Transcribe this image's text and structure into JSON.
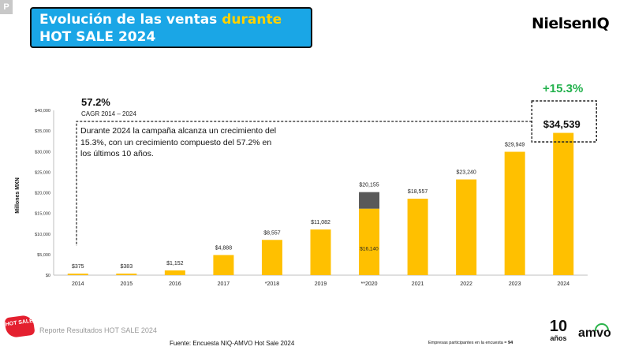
{
  "corner_tag": "P",
  "title": {
    "part1": "Evolución de las ventas ",
    "highlight": "durante",
    "line2": "HOT SALE 2024"
  },
  "brand": "NielsenIQ",
  "growth": "+15.3%",
  "cagr": {
    "value": "57.2%",
    "label": "CAGR 2014 – 2024"
  },
  "note": "Durante 2024 la campaña alcanza un crecimiento del 15.3%, con un crecimiento compuesto del 57.2% en los últimos 10 años.",
  "colors": {
    "bar": "#ffc000",
    "stack": "#595959",
    "title_bg": "#1aa6e6",
    "growth": "#22b14c"
  },
  "chart_data": {
    "type": "bar",
    "ylabel": "Millones MXN",
    "ylim": [
      0,
      40000
    ],
    "yticks": [
      0,
      5000,
      10000,
      15000,
      20000,
      25000,
      30000,
      35000,
      40000
    ],
    "ytick_labels": [
      "$0",
      "$5,000",
      "$10,000",
      "$15,000",
      "$20,000",
      "$25,000",
      "$30,000",
      "$35,000",
      "$40,000"
    ],
    "categories": [
      "2014",
      "2015",
      "2016",
      "2017",
      "*2018",
      "2019",
      "**2020",
      "2021",
      "2022",
      "2023",
      "2024"
    ],
    "values": [
      375,
      383,
      1152,
      4888,
      8557,
      11082,
      20155,
      18557,
      23240,
      29949,
      34539
    ],
    "labels": [
      "$375",
      "$383",
      "$1,152",
      "$4,888",
      "$8,557",
      "$11,082",
      "$20,155",
      "$18,557",
      "$23,240",
      "$29,949",
      "$34,539"
    ],
    "stacked_2020": {
      "base_value": 16140,
      "base_label": "$16,140",
      "top_value": 20155
    }
  },
  "footer": {
    "report_title": "Reporte Resultados HOT SALE 2024",
    "source": "Fuente: Encuesta NIQ-AMVO Hot Sale 2024",
    "count_label": "Empresas participantes en la encuesta = ",
    "count_value": "94",
    "logo_hotsale": "HOT SALE",
    "ten_years_num": "10",
    "ten_years_word": "años",
    "amvo": "amvo"
  }
}
